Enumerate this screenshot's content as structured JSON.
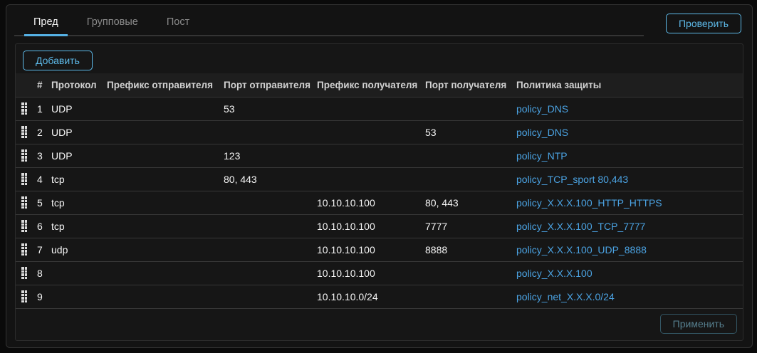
{
  "tabs": [
    {
      "label": "Пред",
      "active": true
    },
    {
      "label": "Групповые",
      "active": false
    },
    {
      "label": "Пост",
      "active": false
    }
  ],
  "buttons": {
    "check": "Проверить",
    "add": "Добавить",
    "apply": "Применить"
  },
  "table": {
    "columns": [
      "#",
      "Протокол",
      "Префикс отправителя",
      "Порт отправителя",
      "Префикс получателя",
      "Порт получателя",
      "Политика защиты"
    ],
    "rows": [
      {
        "num": "1",
        "protocol": "UDP",
        "src_prefix": "",
        "src_port": "53",
        "dst_prefix": "",
        "dst_port": "",
        "policy": "policy_DNS"
      },
      {
        "num": "2",
        "protocol": "UDP",
        "src_prefix": "",
        "src_port": "",
        "dst_prefix": "",
        "dst_port": "53",
        "policy": "policy_DNS"
      },
      {
        "num": "3",
        "protocol": "UDP",
        "src_prefix": "",
        "src_port": "123",
        "dst_prefix": "",
        "dst_port": "",
        "policy": "policy_NTP"
      },
      {
        "num": "4",
        "protocol": "tcp",
        "src_prefix": "",
        "src_port": "80, 443",
        "dst_prefix": "",
        "dst_port": "",
        "policy": "policy_TCP_sport 80,443"
      },
      {
        "num": "5",
        "protocol": "tcp",
        "src_prefix": "",
        "src_port": "",
        "dst_prefix": "10.10.10.100",
        "dst_port": "80, 443",
        "policy": "policy_X.X.X.100_HTTP_HTTPS"
      },
      {
        "num": "6",
        "protocol": "tcp",
        "src_prefix": "",
        "src_port": "",
        "dst_prefix": "10.10.10.100",
        "dst_port": "7777",
        "policy": "policy_X.X.X.100_TCP_7777"
      },
      {
        "num": "7",
        "protocol": "udp",
        "src_prefix": "",
        "src_port": "",
        "dst_prefix": "10.10.10.100",
        "dst_port": "8888",
        "policy": "policy_X.X.X.100_UDP_8888"
      },
      {
        "num": "8",
        "protocol": "",
        "src_prefix": "",
        "src_port": "",
        "dst_prefix": "10.10.10.100",
        "dst_port": "",
        "policy": "policy_X.X.X.100"
      },
      {
        "num": "9",
        "protocol": "",
        "src_prefix": "",
        "src_port": "",
        "dst_prefix": "10.10.10.0/24",
        "dst_port": "",
        "policy": "policy_net_X.X.X.0/24"
      }
    ]
  },
  "colors": {
    "accent_blue": "#5db9e8",
    "tab_underline": "#56b2e6",
    "policy_link": "#4ba3e3",
    "disabled_button": "#567f8e",
    "panel_bg": "#161616",
    "header_row_bg": "#1e1e1e"
  }
}
